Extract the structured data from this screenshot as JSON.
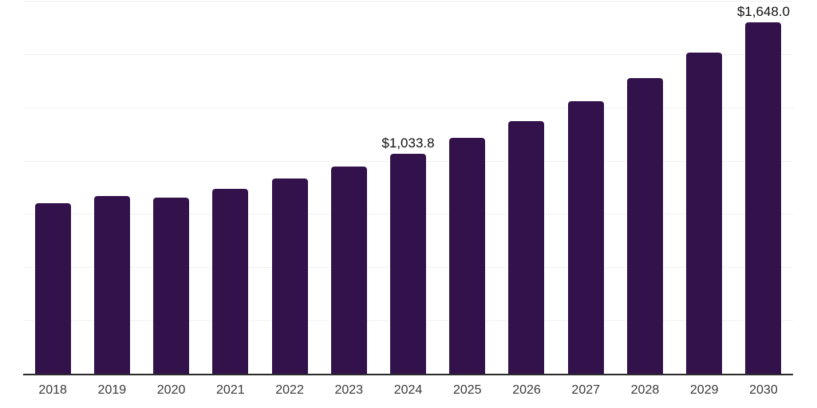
{
  "chart_data": {
    "type": "bar",
    "title": "",
    "xlabel": "",
    "ylabel": "",
    "categories": [
      "2018",
      "2019",
      "2020",
      "2021",
      "2022",
      "2023",
      "2024",
      "2025",
      "2026",
      "2027",
      "2028",
      "2029",
      "2030"
    ],
    "values": [
      800.0,
      832.4,
      827.5,
      867.2,
      917.3,
      973.4,
      1033.8,
      1105.5,
      1186.7,
      1280.2,
      1386.1,
      1508.4,
      1648.0
    ],
    "point_labels": [
      "",
      "",
      "",
      "",
      "",
      "",
      "$1,033.8",
      "",
      "",
      "",
      "",
      "",
      "$1,648.0"
    ],
    "ylim": [
      0,
      1750
    ],
    "gridline_step": 250,
    "grid": "horizontal-only",
    "legend": "none",
    "y_axis_labels_visible": false,
    "colors": {
      "bar": "#33124b",
      "axis_line": "#2b2b2b",
      "gridline": "#f2f2f2",
      "tick_label": "#3a3a3a",
      "data_label": "#111111",
      "background": "#ffffff"
    }
  }
}
